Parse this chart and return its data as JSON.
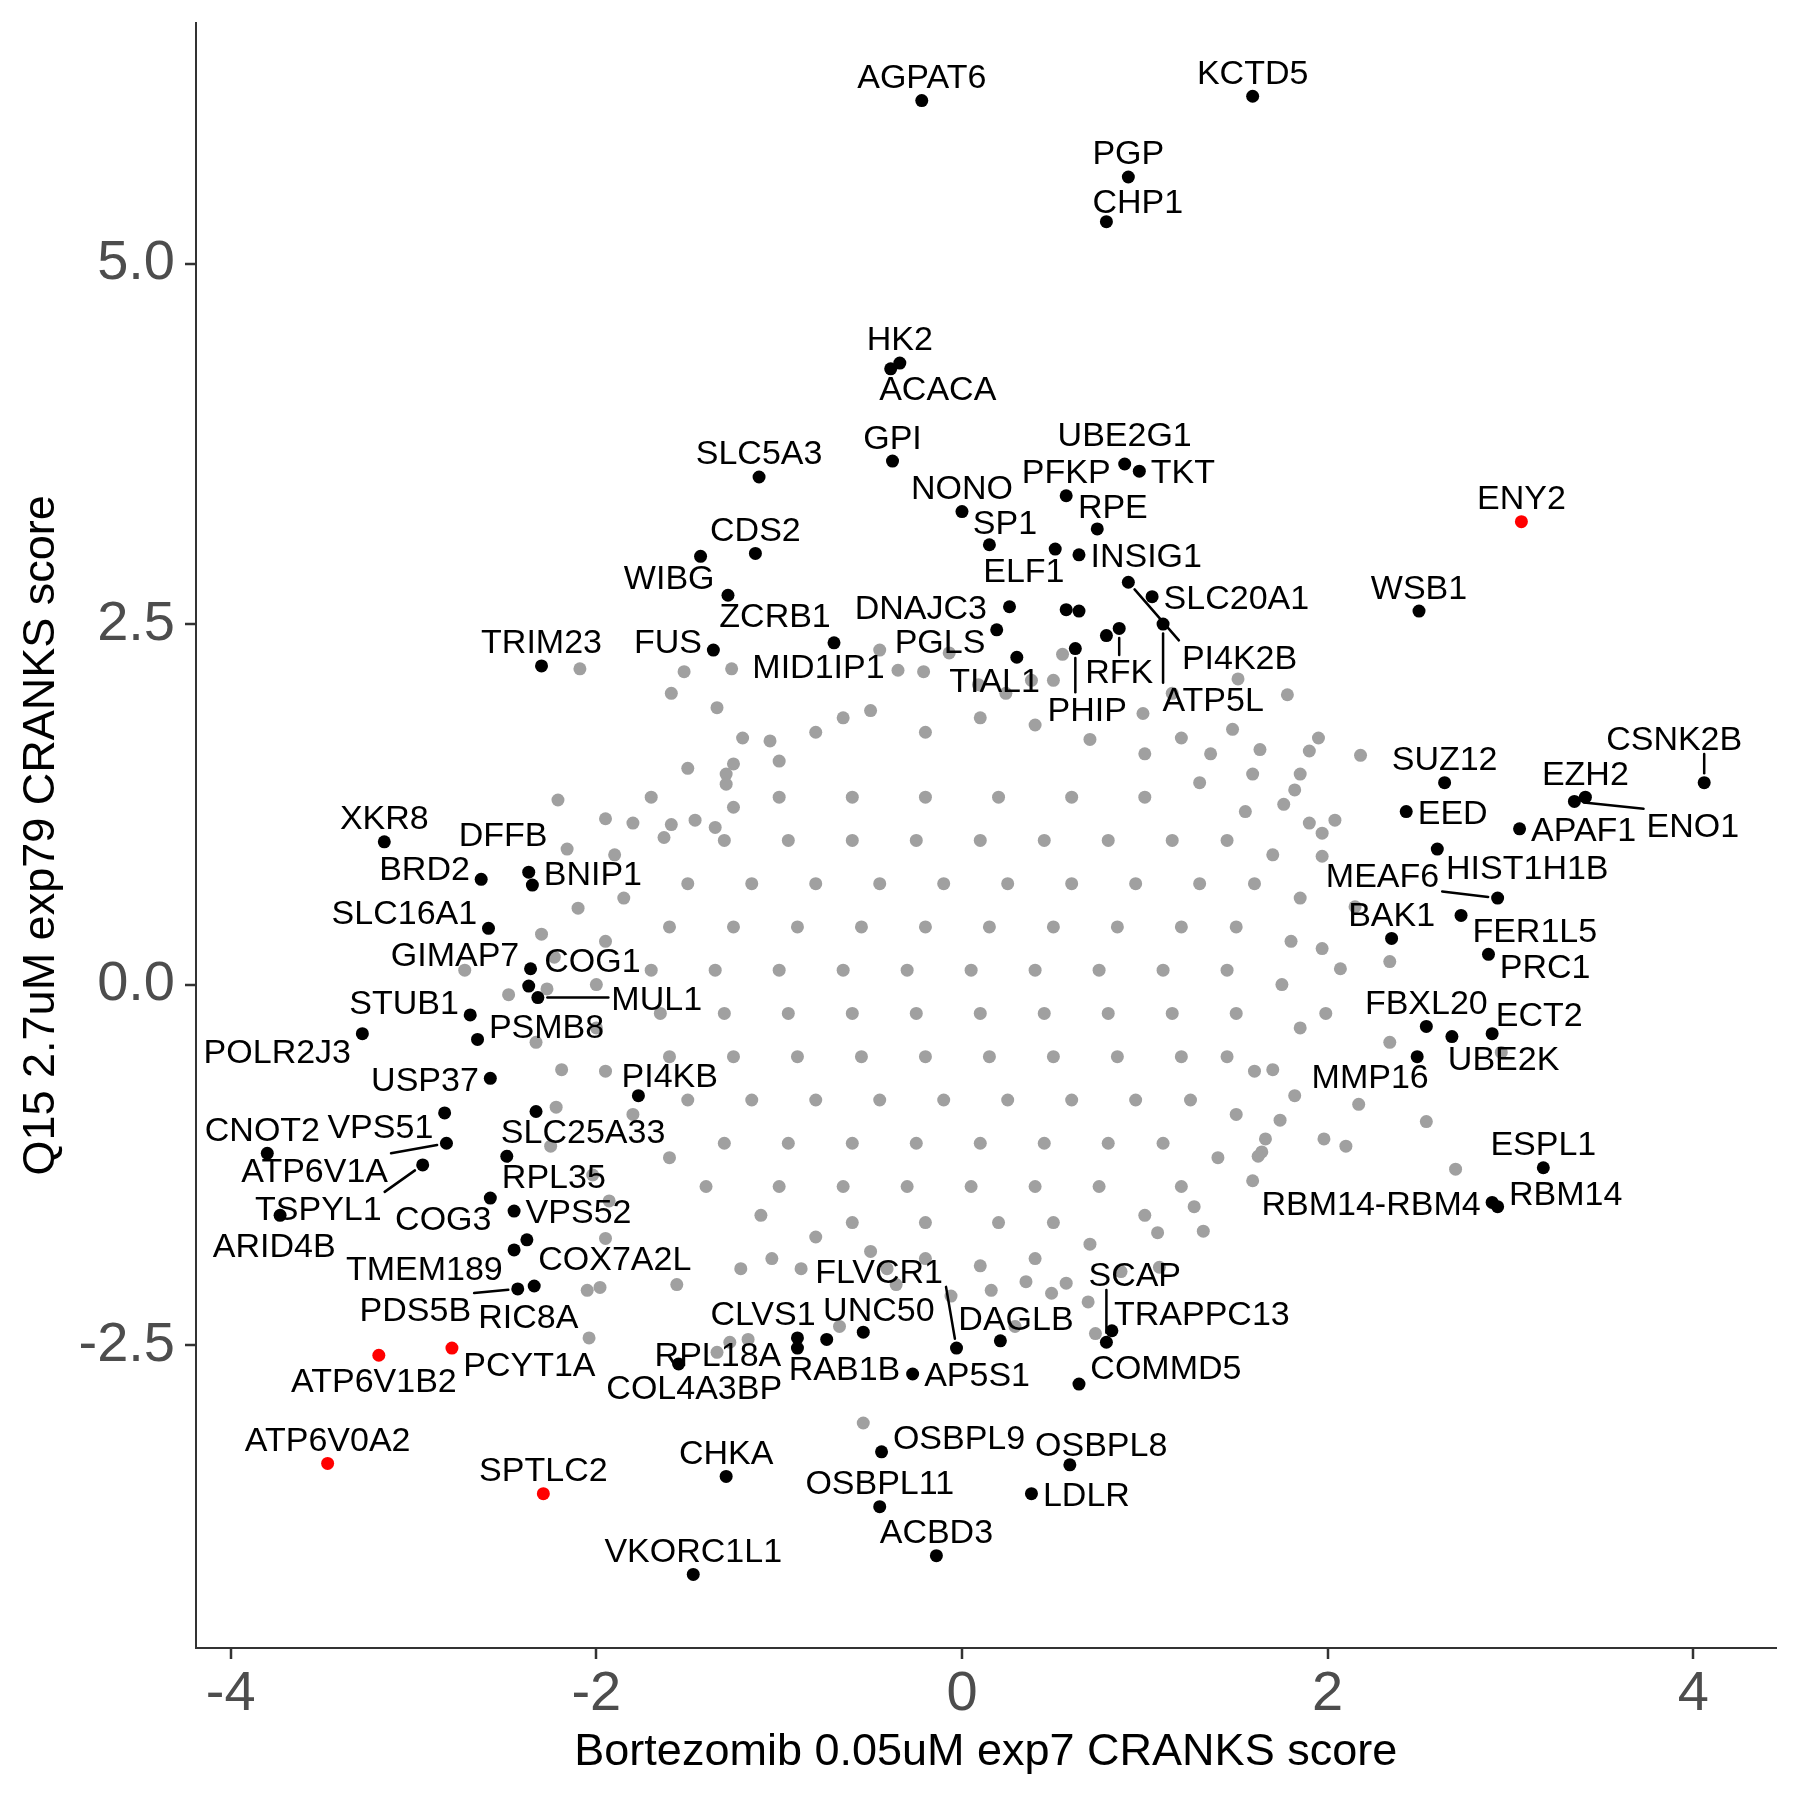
{
  "chart_data": {
    "type": "scatter",
    "xlabel": "Bortezomib 0.05uM exp7 CRANKS score",
    "ylabel": "Q15 2.7uM exp79 CRANKS score",
    "xlim": [
      -4.19,
      4.45
    ],
    "ylim": [
      -4.6,
      6.67
    ],
    "xticks": [
      -4,
      -2,
      0,
      2,
      4
    ],
    "yticks": [
      -2.5,
      {
        "value": 0,
        "label": "0.0"
      },
      2.5,
      {
        "value": 5,
        "label": "5.0"
      }
    ],
    "marker": "circle",
    "series": [
      {
        "color": "#a0a0a0",
        "x": [
          -2.09,
          -1.52,
          -1.26,
          -1.34,
          -1.59,
          -1.29,
          -1.29,
          -1.25,
          -1.25,
          -1.59,
          -2.21,
          -1.95,
          -1.8,
          -1.46,
          -1.63,
          -1.35,
          -2.16,
          -0.45,
          -0.07,
          -0.35,
          -0.21,
          0.55,
          0.38,
          0.5,
          1.15,
          1.51,
          1.48,
          1.63,
          -1.2,
          -1.05,
          1.36,
          1.59,
          1.2,
          0.99,
          0.24,
          0.09,
          -0.65,
          1.78,
          1.95,
          1.9,
          2.18,
          1.85,
          1.82,
          2.04,
          1.97,
          1.76,
          1.9,
          1.97,
          2.15,
          1.97,
          2.07,
          2.34,
          1.99,
          2.34,
          2.95,
          1.7,
          1.82,
          2.17,
          2.54,
          1.74,
          1.98,
          2.1,
          2.7,
          1.66,
          1.64,
          -1.17,
          -0.54,
          0.69,
          0.73,
          0.29,
          0.49,
          1.32,
          1.07,
          1.27,
          1.59,
          1.62,
          0.87,
          0.57,
          -1.21,
          -1.27,
          -0.88,
          -0.67,
          -1.04,
          -0.41,
          -0.36,
          -0.06,
          0.16,
          0.35,
          1.08,
          -1.34,
          -2.72,
          -2.48,
          -2.04,
          -2.05,
          -2.27,
          -2.23,
          -2.1,
          -2.3,
          -1.93,
          -2.25,
          -2.02,
          -1.95,
          -1.56,
          -1.98,
          -2.33,
          -2.19,
          -2.22,
          -1.7,
          -1.5,
          -1.0,
          -0.8,
          -0.5,
          -0.2,
          0.1,
          0.4,
          0.7,
          1.0,
          1.3,
          1.55,
          1.7,
          1.85,
          1.8,
          1.75,
          1.85,
          1.6,
          1.5,
          1.4,
          1.2,
          1.0,
          0.7,
          0.4,
          0.1,
          -0.2,
          -0.5,
          -0.8,
          -1.1,
          -1.4,
          -1.6,
          -1.8,
          -1.95,
          -2.0,
          -2.0,
          -1.95,
          -1.85,
          -1.9,
          -1.0,
          -0.6,
          -0.2,
          0.2,
          0.6,
          1.0,
          -1.3,
          -0.95,
          -0.6,
          -0.25,
          0.1,
          0.45,
          0.8,
          1.15,
          1.45,
          -1.5,
          -1.15,
          -0.8,
          -0.45,
          -0.1,
          0.25,
          0.6,
          0.95,
          1.3,
          1.6,
          -1.6,
          -1.25,
          -0.9,
          -0.55,
          -0.2,
          0.15,
          0.5,
          0.85,
          1.2,
          1.5,
          -1.7,
          -1.35,
          -1.0,
          -0.65,
          -0.3,
          0.05,
          0.4,
          0.75,
          1.1,
          1.45,
          -1.65,
          -1.3,
          -0.95,
          -0.6,
          -0.25,
          0.1,
          0.45,
          0.8,
          1.15,
          1.5,
          -1.6,
          -1.25,
          -0.9,
          -0.55,
          -0.2,
          0.15,
          0.5,
          0.85,
          1.2,
          1.45,
          -1.5,
          -1.15,
          -0.8,
          -0.45,
          -0.1,
          0.25,
          0.6,
          0.95,
          1.25,
          -1.3,
          -0.95,
          -0.6,
          -0.25,
          0.1,
          0.45,
          0.8,
          1.1,
          -1.0,
          -0.65,
          -0.3,
          0.05,
          0.4,
          0.75,
          -0.6,
          -0.2,
          0.2,
          0.5
        ],
        "values": [
          2.19,
          2.17,
          2.19,
          1.92,
          2.02,
          1.46,
          1.39,
          1.53,
          1.23,
          1.11,
          1.28,
          1.15,
          1.12,
          1.14,
          1.02,
          1.09,
          0.94,
          2.32,
          2.3,
          2.18,
          2.17,
          2.29,
          2.11,
          2.11,
          2.02,
          2.12,
          1.77,
          1.63,
          1.71,
          1.69,
          1.6,
          1.46,
          1.71,
          1.88,
          2.02,
          2.08,
          1.85,
          2.01,
          1.71,
          1.62,
          1.59,
          1.46,
          1.35,
          1.14,
          1.05,
          1.25,
          1.12,
          0.89,
          0.54,
          0.25,
          0.11,
          0.16,
          -0.2,
          -0.4,
          -0.47,
          -0.59,
          -0.77,
          -0.83,
          -0.95,
          -0.94,
          -1.07,
          -1.12,
          -1.28,
          -1.07,
          -1.16,
          -2.46,
          -3.04,
          -2.2,
          -2.42,
          -2.37,
          -2.14,
          -1.71,
          -1.72,
          -1.54,
          -1.36,
          -1.19,
          -1.99,
          -2.07,
          -1.97,
          -2.48,
          -1.97,
          -2.37,
          -1.9,
          -1.97,
          -2.08,
          -2.16,
          -2.12,
          -2.06,
          -1.96,
          -2.55,
          0.1,
          -0.07,
          -2.45,
          -2.12,
          -0.03,
          0.19,
          0.53,
          0.35,
          -1.5,
          -1.12,
          -1.32,
          -1.76,
          -2.08,
          -2.1,
          -0.4,
          -0.59,
          -0.85,
          1.3,
          1.5,
          1.55,
          1.75,
          1.9,
          1.75,
          1.85,
          1.8,
          1.7,
          1.6,
          1.4,
          1.2,
          0.9,
          0.6,
          0.3,
          0.0,
          -0.3,
          -0.6,
          -0.9,
          -1.2,
          -1.4,
          -1.6,
          -1.8,
          -1.9,
          -1.95,
          -1.9,
          -1.85,
          -1.75,
          -1.6,
          -1.4,
          -1.2,
          -0.9,
          -0.6,
          -0.3,
          0.0,
          0.3,
          0.6,
          0.9,
          1.3,
          1.3,
          1.3,
          1.3,
          1.3,
          1.3,
          1.0,
          1.0,
          1.0,
          1.0,
          1.0,
          1.0,
          1.0,
          1.0,
          1.0,
          0.7,
          0.7,
          0.7,
          0.7,
          0.7,
          0.7,
          0.7,
          0.7,
          0.7,
          0.7,
          0.4,
          0.4,
          0.4,
          0.4,
          0.4,
          0.4,
          0.4,
          0.4,
          0.4,
          0.4,
          0.1,
          0.1,
          0.1,
          0.1,
          0.1,
          0.1,
          0.1,
          0.1,
          0.1,
          0.1,
          -0.2,
          -0.2,
          -0.2,
          -0.2,
          -0.2,
          -0.2,
          -0.2,
          -0.2,
          -0.2,
          -0.2,
          -0.5,
          -0.5,
          -0.5,
          -0.5,
          -0.5,
          -0.5,
          -0.5,
          -0.5,
          -0.5,
          -0.5,
          -0.8,
          -0.8,
          -0.8,
          -0.8,
          -0.8,
          -0.8,
          -0.8,
          -0.8,
          -0.8,
          -1.1,
          -1.1,
          -1.1,
          -1.1,
          -1.1,
          -1.1,
          -1.1,
          -1.1,
          -1.4,
          -1.4,
          -1.4,
          -1.4,
          -1.4,
          -1.4,
          -1.65,
          -1.65,
          -1.65,
          -1.65
        ]
      },
      {
        "color": "#000000",
        "x": [
          1.59,
          -0.22,
          0.91,
          0.79,
          -0.34,
          -0.39,
          0.89,
          0.97,
          -0.38,
          -1.11,
          0.57,
          0.0,
          0.74,
          0.51,
          0.15,
          0.64,
          -1.13,
          -1.43,
          0.91,
          -1.28,
          1.04,
          0.26,
          0.57,
          0.64,
          2.5,
          1.1,
          0.19,
          0.86,
          0.79,
          -0.7,
          0.62,
          -1.36,
          0.3,
          -2.3,
          2.64,
          4.06,
          3.41,
          3.35,
          2.43,
          3.05,
          -3.16,
          2.6,
          -2.37,
          -2.63,
          -2.35,
          2.93,
          2.73,
          -2.59,
          2.35,
          2.88,
          -2.36,
          -2.37,
          -2.32,
          -2.69,
          2.54,
          2.9,
          2.68,
          -3.28,
          -2.65,
          2.49,
          -2.58,
          -1.77,
          -2.33,
          -2.83,
          -2.82,
          -3.8,
          -2.49,
          -2.95,
          3.18,
          -2.58,
          2.9,
          2.93,
          -2.45,
          -3.73,
          -2.38,
          -2.45,
          -2.34,
          -2.43,
          -0.54,
          0.82,
          -0.9,
          -0.74,
          0.21,
          0.79,
          -0.9,
          -0.03,
          -1.55,
          -0.27,
          0.64,
          -0.44,
          0.59,
          -1.29,
          0.38,
          -0.45,
          -0.14,
          -1.47
        ],
        "values": [
          6.16,
          6.13,
          5.6,
          5.29,
          4.31,
          4.27,
          3.61,
          3.56,
          3.63,
          3.52,
          3.39,
          3.28,
          3.16,
          3.02,
          3.05,
          2.98,
          2.99,
          2.97,
          2.79,
          2.7,
          2.69,
          2.62,
          2.6,
          2.59,
          2.59,
          2.5,
          2.46,
          2.47,
          2.42,
          2.37,
          2.33,
          2.32,
          2.27,
          2.21,
          1.4,
          1.4,
          1.3,
          1.27,
          1.2,
          1.08,
          0.99,
          0.94,
          0.78,
          0.73,
          0.69,
          0.6,
          0.48,
          0.39,
          0.32,
          0.21,
          0.11,
          -0.01,
          -0.09,
          -0.21,
          -0.29,
          -0.34,
          -0.36,
          -0.34,
          -0.38,
          -0.5,
          -0.65,
          -0.77,
          -0.88,
          -0.89,
          -1.1,
          -1.17,
          -1.19,
          -1.25,
          -1.27,
          -1.48,
          -1.51,
          -1.54,
          -1.57,
          -1.6,
          -1.77,
          -1.84,
          -2.09,
          -2.11,
          -2.41,
          -2.4,
          -2.45,
          -2.46,
          -2.47,
          -2.48,
          -2.52,
          -2.52,
          -2.63,
          -2.7,
          -2.77,
          -3.24,
          -3.33,
          -3.41,
          -3.53,
          -3.62,
          -3.96,
          -4.09
        ]
      },
      {
        "color": "#ff0000",
        "x": [
          3.06,
          -3.19,
          -2.79,
          -3.47,
          -2.29
        ],
        "values": [
          3.21,
          -2.57,
          -2.52,
          -3.32,
          -3.53
        ]
      }
    ],
    "annotations": [
      {
        "text": "KCTD5",
        "x": 1.59,
        "y": 6.16
      },
      {
        "text": "AGPAT6",
        "x": -0.22,
        "y": 6.13
      },
      {
        "text": "PGP",
        "x": 0.91,
        "y": 5.6
      },
      {
        "text": "CHP1",
        "x": 0.79,
        "y": 5.29
      },
      {
        "text": "HK2",
        "x": -0.34,
        "y": 4.31
      },
      {
        "text": "ACACA",
        "x": -0.39,
        "y": 4.27
      },
      {
        "text": "UBE2G1",
        "x": 0.89,
        "y": 3.61
      },
      {
        "text": "TKT",
        "x": 0.97,
        "y": 3.56
      },
      {
        "text": "GPI",
        "x": -0.38,
        "y": 3.63
      },
      {
        "text": "SLC5A3",
        "x": -1.11,
        "y": 3.52
      },
      {
        "text": "PFKP",
        "x": 0.57,
        "y": 3.39
      },
      {
        "text": "NONO",
        "x": 0.0,
        "y": 3.28
      },
      {
        "text": "RPE",
        "x": 0.74,
        "y": 3.16
      },
      {
        "text": "ELF1",
        "x": 0.51,
        "y": 3.02
      },
      {
        "text": "SP1",
        "x": 0.15,
        "y": 3.05
      },
      {
        "text": "INSIG1",
        "x": 0.64,
        "y": 2.98
      },
      {
        "text": "CDS2",
        "x": -1.13,
        "y": 2.99
      },
      {
        "text": "WIBG",
        "x": -1.43,
        "y": 2.97
      },
      {
        "text": "PI4K2B",
        "x": 0.91,
        "y": 2.79
      },
      {
        "text": "ZCRB1",
        "x": -1.28,
        "y": 2.7
      },
      {
        "text": "SLC20A1",
        "x": 1.04,
        "y": 2.69
      },
      {
        "text": "DNAJC3",
        "x": 0.26,
        "y": 2.62
      },
      {
        "text": "WSB1",
        "x": 2.5,
        "y": 2.59
      },
      {
        "text": "ATP5L",
        "x": 1.1,
        "y": 2.5
      },
      {
        "text": "PGLS",
        "x": 0.19,
        "y": 2.46
      },
      {
        "text": "RFK",
        "x": 0.86,
        "y": 2.47
      },
      {
        "text": "MID1IP1",
        "x": -0.7,
        "y": 2.37
      },
      {
        "text": "PHIP",
        "x": 0.62,
        "y": 2.33
      },
      {
        "text": "FUS",
        "x": -1.36,
        "y": 2.32
      },
      {
        "text": "TIAL1",
        "x": 0.3,
        "y": 2.27
      },
      {
        "text": "TRIM23",
        "x": -2.3,
        "y": 2.21
      },
      {
        "text": "ENY2",
        "x": 3.06,
        "y": 3.21
      },
      {
        "text": "SUZ12",
        "x": 2.64,
        "y": 1.4
      },
      {
        "text": "CSNK2B",
        "x": 4.06,
        "y": 1.4
      },
      {
        "text": "EZH2",
        "x": 3.41,
        "y": 1.3
      },
      {
        "text": "ENO1",
        "x": 3.35,
        "y": 1.27
      },
      {
        "text": "EED",
        "x": 2.43,
        "y": 1.2
      },
      {
        "text": "APAF1",
        "x": 3.05,
        "y": 1.08
      },
      {
        "text": "XKR8",
        "x": -3.16,
        "y": 0.99
      },
      {
        "text": "HIST1H1B",
        "x": 2.6,
        "y": 0.94
      },
      {
        "text": "DFFB",
        "x": -2.37,
        "y": 0.78
      },
      {
        "text": "BRD2",
        "x": -2.63,
        "y": 0.73
      },
      {
        "text": "BNIP1",
        "x": -2.35,
        "y": 0.69
      },
      {
        "text": "MEAF6",
        "x": 2.93,
        "y": 0.6
      },
      {
        "text": "FER1L5",
        "x": 2.73,
        "y": 0.48
      },
      {
        "text": "SLC16A1",
        "x": -2.59,
        "y": 0.39
      },
      {
        "text": "BAK1",
        "x": 2.35,
        "y": 0.32
      },
      {
        "text": "PRC1",
        "x": 2.88,
        "y": 0.21
      },
      {
        "text": "GIMAP7",
        "x": -2.36,
        "y": 0.11
      },
      {
        "text": "COG1",
        "x": -2.37,
        "y": -0.01
      },
      {
        "text": "MUL1",
        "x": -2.32,
        "y": -0.09
      },
      {
        "text": "STUB1",
        "x": -2.69,
        "y": -0.21
      },
      {
        "text": "FBXL20",
        "x": 2.54,
        "y": -0.29
      },
      {
        "text": "ECT2",
        "x": 2.9,
        "y": -0.34
      },
      {
        "text": "UBE2K",
        "x": 2.68,
        "y": -0.36
      },
      {
        "text": "POLR2J3",
        "x": -3.28,
        "y": -0.34
      },
      {
        "text": "PSMB8",
        "x": -2.65,
        "y": -0.38
      },
      {
        "text": "MMP16",
        "x": 2.49,
        "y": -0.5
      },
      {
        "text": "USP37",
        "x": -2.58,
        "y": -0.65
      },
      {
        "text": "PI4KB",
        "x": -1.77,
        "y": -0.77
      },
      {
        "text": "SLC25A33",
        "x": -2.33,
        "y": -0.88
      },
      {
        "text": "VPS51",
        "x": -2.83,
        "y": -0.89
      },
      {
        "text": "ATP6V1A",
        "x": -2.82,
        "y": -1.1
      },
      {
        "text": "CNOT2",
        "x": -3.8,
        "y": -1.17
      },
      {
        "text": "RPL35",
        "x": -2.49,
        "y": -1.19
      },
      {
        "text": "TSPYL1",
        "x": -2.95,
        "y": -1.25
      },
      {
        "text": "ESPL1",
        "x": 3.18,
        "y": -1.27
      },
      {
        "text": "COG3",
        "x": -2.58,
        "y": -1.48
      },
      {
        "text": "RBM14-RBM4",
        "x": 2.9,
        "y": -1.51
      },
      {
        "text": "RBM14",
        "x": 2.93,
        "y": -1.54
      },
      {
        "text": "VPS52",
        "x": -2.45,
        "y": -1.57
      },
      {
        "text": "ARID4B",
        "x": -3.73,
        "y": -1.6
      },
      {
        "text": "COX7A2L",
        "x": -2.38,
        "y": -1.77
      },
      {
        "text": "TMEM189",
        "x": -2.45,
        "y": -1.84
      },
      {
        "text": "RIC8A",
        "x": -2.34,
        "y": -2.09
      },
      {
        "text": "PDS5B",
        "x": -2.43,
        "y": -2.11
      },
      {
        "text": "UNC50",
        "x": -0.54,
        "y": -2.41
      },
      {
        "text": "TRAPPC13",
        "x": 0.82,
        "y": -2.4
      },
      {
        "text": "RPL18A",
        "x": -0.9,
        "y": -2.45
      },
      {
        "text": "CLVS1",
        "x": -0.74,
        "y": -2.46
      },
      {
        "text": "DAGLB",
        "x": 0.21,
        "y": -2.47
      },
      {
        "text": "SCAP",
        "x": 0.79,
        "y": -2.48
      },
      {
        "text": "RAB1B",
        "x": -0.9,
        "y": -2.52
      },
      {
        "text": "FLVCR1",
        "x": -0.03,
        "y": -2.52
      },
      {
        "text": "ATP6V1B2",
        "x": -3.19,
        "y": -2.57
      },
      {
        "text": "PCYT1A",
        "x": -2.79,
        "y": -2.52
      },
      {
        "text": "COL4A3BP",
        "x": -1.55,
        "y": -2.63
      },
      {
        "text": "AP5S1",
        "x": -0.27,
        "y": -2.7
      },
      {
        "text": "COMMD5",
        "x": 0.64,
        "y": -2.77
      },
      {
        "text": "OSBPL9",
        "x": -0.44,
        "y": -3.24
      },
      {
        "text": "ATP6V0A2",
        "x": -3.47,
        "y": -3.32
      },
      {
        "text": "OSBPL8",
        "x": 0.59,
        "y": -3.33
      },
      {
        "text": "CHKA",
        "x": -1.29,
        "y": -3.41
      },
      {
        "text": "SPTLC2",
        "x": -2.29,
        "y": -3.53
      },
      {
        "text": "LDLR",
        "x": 0.38,
        "y": -3.53
      },
      {
        "text": "OSBPL11",
        "x": -0.45,
        "y": -3.62
      },
      {
        "text": "ACBD3",
        "x": -0.14,
        "y": -3.96
      },
      {
        "text": "VKORC1L1",
        "x": -1.47,
        "y": -4.09
      }
    ]
  }
}
